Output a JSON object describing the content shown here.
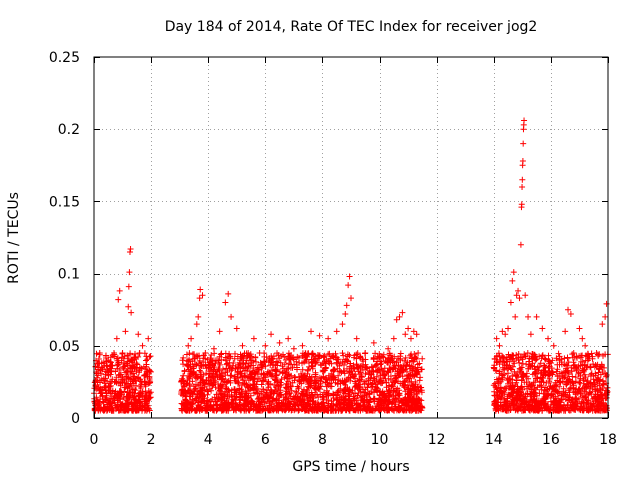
{
  "chart_data": {
    "type": "scatter",
    "title": "Day 184 of 2014, Rate Of TEC Index for receiver jog2",
    "xlabel": "GPS time / hours",
    "ylabel": "ROTI / TECUs",
    "xlim": [
      0,
      18
    ],
    "ylim": [
      0,
      0.25
    ],
    "xticks": [
      "0",
      "2",
      "4",
      "6",
      "8",
      "10",
      "12",
      "14",
      "16",
      "18"
    ],
    "yticks": [
      "0",
      "0.05",
      "0.1",
      "0.15",
      "0.2",
      "0.25"
    ],
    "grid": true,
    "marker": "+",
    "color": "#ff0000",
    "series": [
      {
        "name": "ROTI",
        "points": [
          [
            0.05,
            0.005
          ],
          [
            0.1,
            0.02
          ],
          [
            0.15,
            0.035
          ],
          [
            0.2,
            0.045
          ],
          [
            0.3,
            0.015
          ],
          [
            0.4,
            0.03
          ],
          [
            0.5,
            0.04
          ],
          [
            0.55,
            0.01
          ],
          [
            0.6,
            0.025
          ],
          [
            0.7,
            0.045
          ],
          [
            0.8,
            0.055
          ],
          [
            0.85,
            0.082
          ],
          [
            0.9,
            0.088
          ],
          [
            0.95,
            0.03
          ],
          [
            1.0,
            0.045
          ],
          [
            1.1,
            0.06
          ],
          [
            1.2,
            0.077
          ],
          [
            1.22,
            0.091
          ],
          [
            1.24,
            0.101
          ],
          [
            1.26,
            0.115
          ],
          [
            1.28,
            0.117
          ],
          [
            1.3,
            0.073
          ],
          [
            1.35,
            0.04
          ],
          [
            1.4,
            0.02
          ],
          [
            1.5,
            0.035
          ],
          [
            1.55,
            0.058
          ],
          [
            1.6,
            0.045
          ],
          [
            1.7,
            0.05
          ],
          [
            1.8,
            0.015
          ],
          [
            1.9,
            0.055
          ],
          [
            3.05,
            0.025
          ],
          [
            3.1,
            0.04
          ],
          [
            3.2,
            0.012
          ],
          [
            3.3,
            0.05
          ],
          [
            3.4,
            0.055
          ],
          [
            3.5,
            0.03
          ],
          [
            3.6,
            0.065
          ],
          [
            3.65,
            0.07
          ],
          [
            3.7,
            0.083
          ],
          [
            3.72,
            0.089
          ],
          [
            3.8,
            0.085
          ],
          [
            3.9,
            0.045
          ],
          [
            4.0,
            0.035
          ],
          [
            4.2,
            0.048
          ],
          [
            4.4,
            0.06
          ],
          [
            4.6,
            0.08
          ],
          [
            4.7,
            0.086
          ],
          [
            4.8,
            0.07
          ],
          [
            5.0,
            0.062
          ],
          [
            5.2,
            0.05
          ],
          [
            5.4,
            0.045
          ],
          [
            5.6,
            0.055
          ],
          [
            5.8,
            0.045
          ],
          [
            6.0,
            0.05
          ],
          [
            6.2,
            0.058
          ],
          [
            6.5,
            0.052
          ],
          [
            6.8,
            0.055
          ],
          [
            7.0,
            0.048
          ],
          [
            7.3,
            0.05
          ],
          [
            7.6,
            0.06
          ],
          [
            7.9,
            0.057
          ],
          [
            8.2,
            0.055
          ],
          [
            8.5,
            0.06
          ],
          [
            8.7,
            0.065
          ],
          [
            8.8,
            0.072
          ],
          [
            8.85,
            0.078
          ],
          [
            8.9,
            0.092
          ],
          [
            8.95,
            0.098
          ],
          [
            9.0,
            0.083
          ],
          [
            9.2,
            0.055
          ],
          [
            9.5,
            0.045
          ],
          [
            9.8,
            0.052
          ],
          [
            10.0,
            0.042
          ],
          [
            10.3,
            0.048
          ],
          [
            10.5,
            0.055
          ],
          [
            10.6,
            0.068
          ],
          [
            10.7,
            0.07
          ],
          [
            10.8,
            0.073
          ],
          [
            10.9,
            0.058
          ],
          [
            11.0,
            0.062
          ],
          [
            11.1,
            0.055
          ],
          [
            11.2,
            0.06
          ],
          [
            11.3,
            0.058
          ],
          [
            11.35,
            0.045
          ],
          [
            14.0,
            0.035
          ],
          [
            14.1,
            0.055
          ],
          [
            14.2,
            0.05
          ],
          [
            14.3,
            0.06
          ],
          [
            14.4,
            0.058
          ],
          [
            14.5,
            0.062
          ],
          [
            14.6,
            0.08
          ],
          [
            14.65,
            0.095
          ],
          [
            14.7,
            0.101
          ],
          [
            14.75,
            0.07
          ],
          [
            14.8,
            0.085
          ],
          [
            14.85,
            0.088
          ],
          [
            14.9,
            0.083
          ],
          [
            14.95,
            0.12
          ],
          [
            14.97,
            0.146
          ],
          [
            14.98,
            0.148
          ],
          [
            14.99,
            0.16
          ],
          [
            15.0,
            0.165
          ],
          [
            15.01,
            0.175
          ],
          [
            15.02,
            0.178
          ],
          [
            15.03,
            0.19
          ],
          [
            15.04,
            0.2
          ],
          [
            15.05,
            0.203
          ],
          [
            15.06,
            0.206
          ],
          [
            15.1,
            0.085
          ],
          [
            15.2,
            0.07
          ],
          [
            15.3,
            0.058
          ],
          [
            15.5,
            0.07
          ],
          [
            15.7,
            0.062
          ],
          [
            15.9,
            0.055
          ],
          [
            16.1,
            0.05
          ],
          [
            16.3,
            0.04
          ],
          [
            16.5,
            0.06
          ],
          [
            16.6,
            0.075
          ],
          [
            16.7,
            0.072
          ],
          [
            16.8,
            0.045
          ],
          [
            17.0,
            0.062
          ],
          [
            17.1,
            0.055
          ],
          [
            17.2,
            0.05
          ],
          [
            17.4,
            0.035
          ],
          [
            17.6,
            0.045
          ],
          [
            17.8,
            0.065
          ],
          [
            17.9,
            0.07
          ],
          [
            17.95,
            0.079
          ]
        ]
      }
    ]
  }
}
